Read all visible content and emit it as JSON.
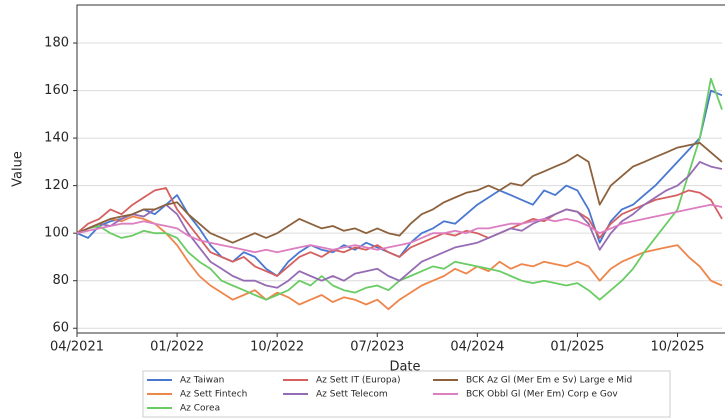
{
  "chart_data": {
    "type": "line",
    "x_label": "Date",
    "y_label": "Value",
    "x": [
      "2021-04",
      "2021-05",
      "2021-06",
      "2021-07",
      "2021-08",
      "2021-09",
      "2021-10",
      "2021-11",
      "2021-12",
      "2022-01",
      "2022-02",
      "2022-03",
      "2022-04",
      "2022-05",
      "2022-06",
      "2022-07",
      "2022-08",
      "2022-09",
      "2022-10",
      "2022-11",
      "2022-12",
      "2023-01",
      "2023-02",
      "2023-03",
      "2023-04",
      "2023-05",
      "2023-06",
      "2023-07",
      "2023-08",
      "2023-09",
      "2023-10",
      "2023-11",
      "2023-12",
      "2024-01",
      "2024-02",
      "2024-03",
      "2024-04",
      "2024-05",
      "2024-06",
      "2024-07",
      "2024-08",
      "2024-09",
      "2024-10",
      "2024-11",
      "2024-12",
      "2025-01",
      "2025-02",
      "2025-03",
      "2025-04",
      "2025-05",
      "2025-06",
      "2025-07",
      "2025-08",
      "2025-09",
      "2025-10",
      "2025-11",
      "2025-12",
      "2026-01",
      "2026-02"
    ],
    "xlim": [
      "2021-04",
      "2026-02"
    ],
    "xticks": [
      {
        "value": "2021-04",
        "label": "04/2021"
      },
      {
        "value": "2022-01",
        "label": "01/2022"
      },
      {
        "value": "2022-10",
        "label": "10/2022"
      },
      {
        "value": "2023-07",
        "label": "07/2023"
      },
      {
        "value": "2024-04",
        "label": "04/2024"
      },
      {
        "value": "2025-01",
        "label": "01/2025"
      },
      {
        "value": "2025-10",
        "label": "10/2025"
      }
    ],
    "ylim": [
      58,
      196
    ],
    "yticks": [
      60,
      80,
      100,
      120,
      140,
      160,
      180
    ],
    "grid": true,
    "legend": "bottom",
    "series": [
      {
        "name": "Az Taiwan",
        "color": "#4878d0",
        "values": [
          100,
          98,
          103,
          105,
          106,
          108,
          110,
          108,
          112,
          116,
          108,
          102,
          95,
          90,
          88,
          92,
          90,
          85,
          82,
          88,
          92,
          95,
          93,
          92,
          95,
          93,
          96,
          94,
          92,
          90,
          96,
          100,
          102,
          105,
          104,
          108,
          112,
          115,
          118,
          116,
          114,
          112,
          118,
          116,
          120,
          118,
          110,
          96,
          105,
          110,
          112,
          116,
          120,
          125,
          130,
          135,
          140,
          160,
          158
        ]
      },
      {
        "name": "Az Sett Fintech",
        "color": "#ee854a",
        "values": [
          100,
          102,
          104,
          106,
          105,
          107,
          106,
          104,
          100,
          95,
          88,
          82,
          78,
          75,
          72,
          74,
          76,
          72,
          75,
          73,
          70,
          72,
          74,
          71,
          73,
          72,
          70,
          72,
          68,
          72,
          75,
          78,
          80,
          82,
          85,
          83,
          86,
          84,
          88,
          85,
          87,
          86,
          88,
          87,
          86,
          88,
          86,
          80,
          85,
          88,
          90,
          92,
          93,
          94,
          95,
          90,
          86,
          80,
          78
        ]
      },
      {
        "name": "Az Corea",
        "color": "#6acc64",
        "values": [
          100,
          102,
          103,
          100,
          98,
          99,
          101,
          100,
          100,
          98,
          92,
          88,
          85,
          80,
          78,
          76,
          74,
          72,
          74,
          76,
          80,
          78,
          82,
          78,
          76,
          75,
          77,
          78,
          76,
          80,
          82,
          84,
          86,
          85,
          88,
          87,
          86,
          85,
          84,
          82,
          80,
          79,
          80,
          79,
          78,
          79,
          76,
          72,
          76,
          80,
          85,
          92,
          98,
          104,
          110,
          125,
          140,
          165,
          152
        ]
      },
      {
        "name": "Az Sett IT (Europa)",
        "color": "#d65f5f",
        "values": [
          100,
          104,
          106,
          110,
          108,
          112,
          115,
          118,
          119,
          110,
          104,
          98,
          92,
          90,
          88,
          90,
          86,
          84,
          82,
          86,
          90,
          92,
          90,
          93,
          92,
          94,
          93,
          95,
          92,
          90,
          94,
          96,
          98,
          100,
          99,
          101,
          100,
          98,
          100,
          102,
          104,
          106,
          105,
          108,
          110,
          109,
          106,
          98,
          104,
          108,
          110,
          112,
          114,
          115,
          116,
          118,
          117,
          114,
          106
        ]
      },
      {
        "name": "Az Sett Telecom",
        "color": "#956cb4",
        "values": [
          100,
          102,
          104,
          103,
          106,
          108,
          107,
          110,
          112,
          108,
          100,
          94,
          88,
          85,
          82,
          80,
          80,
          78,
          77,
          80,
          84,
          82,
          80,
          82,
          80,
          83,
          84,
          85,
          82,
          80,
          84,
          88,
          90,
          92,
          94,
          95,
          96,
          98,
          100,
          102,
          101,
          104,
          106,
          108,
          110,
          109,
          104,
          93,
          100,
          105,
          108,
          112,
          115,
          118,
          120,
          124,
          130,
          128,
          127
        ]
      },
      {
        "name": "BCK Az Gl (Mer Em e Sv) Large e Mid",
        "color": "#8c613c",
        "values": [
          100,
          102,
          104,
          106,
          107,
          108,
          110,
          110,
          112,
          113,
          108,
          104,
          100,
          98,
          96,
          98,
          100,
          98,
          100,
          103,
          106,
          104,
          102,
          103,
          101,
          102,
          100,
          102,
          100,
          99,
          104,
          108,
          110,
          113,
          115,
          117,
          118,
          120,
          118,
          121,
          120,
          124,
          126,
          128,
          130,
          133,
          130,
          112,
          120,
          124,
          128,
          130,
          132,
          134,
          136,
          137,
          138,
          134,
          130
        ]
      },
      {
        "name": "BCK Obbl Gl (Mer Em) Corp e Gov",
        "color": "#dc7ec0",
        "values": [
          100,
          101,
          102,
          103,
          104,
          104,
          105,
          104,
          103,
          102,
          99,
          97,
          96,
          95,
          94,
          93,
          92,
          93,
          92,
          93,
          94,
          95,
          94,
          93,
          94,
          95,
          94,
          93,
          94,
          95,
          96,
          98,
          100,
          100,
          101,
          100,
          102,
          102,
          103,
          104,
          104,
          105,
          106,
          105,
          106,
          105,
          103,
          100,
          102,
          104,
          105,
          106,
          107,
          108,
          109,
          110,
          111,
          112,
          111
        ]
      }
    ]
  }
}
